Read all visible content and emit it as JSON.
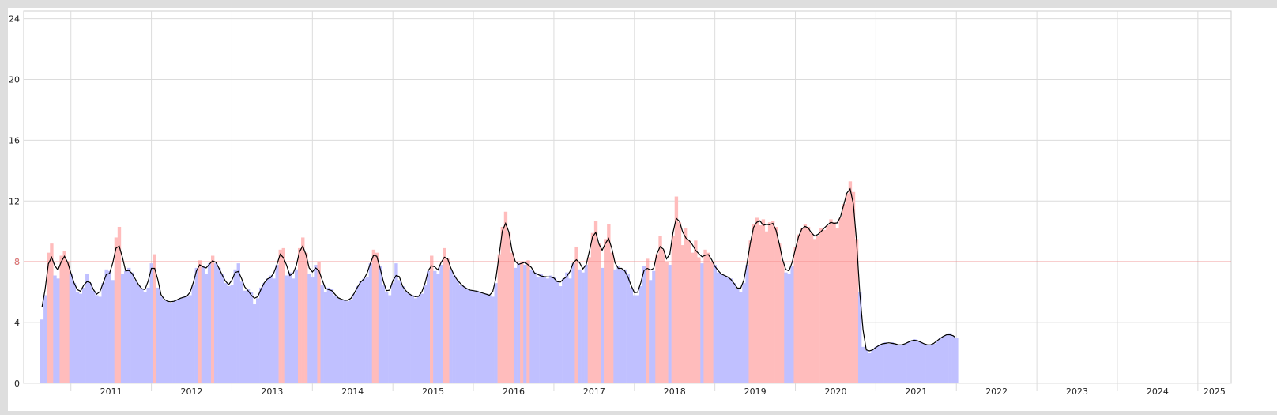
{
  "chart_data": {
    "type": "bar",
    "title": "",
    "xlabel": "",
    "ylabel": "",
    "ylim": [
      0,
      24.5
    ],
    "yticks": [
      0,
      4,
      8,
      12,
      16,
      20,
      24
    ],
    "threshold": {
      "value": 8,
      "label": "8",
      "color": "#f08080"
    },
    "xlim": [
      "2010-06-01",
      "2025-06-01"
    ],
    "year_labels": [
      "2011",
      "2012",
      "2013",
      "2014",
      "2015",
      "2016",
      "2017",
      "2018",
      "2019",
      "2020",
      "2021",
      "2022",
      "2023",
      "2024",
      "2025"
    ],
    "year_boundaries": [
      "2011-01-01",
      "2012-01-01",
      "2013-01-01",
      "2014-01-01",
      "2015-01-01",
      "2016-01-01",
      "2017-01-01",
      "2018-01-01",
      "2019-01-01",
      "2020-01-01",
      "2021-01-01",
      "2022-01-01",
      "2023-01-01",
      "2024-01-01",
      "2025-01-01"
    ],
    "colors": {
      "below": "#c0c0ff",
      "above": "#ffbcbc",
      "trend": "#000000",
      "grid": "#dcdcdc"
    },
    "series": [
      {
        "kind": "bars",
        "x_format": "year-fraction",
        "points": [
          [
            2010.62,
            4.2
          ],
          [
            2010.66,
            5.8
          ],
          [
            2010.7,
            8.6
          ],
          [
            2010.74,
            9.2
          ],
          [
            2010.78,
            7.1
          ],
          [
            2010.82,
            6.9
          ],
          [
            2010.86,
            8.4
          ],
          [
            2010.9,
            8.7
          ],
          [
            2010.94,
            8.0
          ],
          [
            2010.98,
            7.2
          ],
          [
            2011.02,
            6.6
          ],
          [
            2011.06,
            6.0
          ],
          [
            2011.1,
            5.9
          ],
          [
            2011.14,
            6.3
          ],
          [
            2011.18,
            7.2
          ],
          [
            2011.22,
            6.6
          ],
          [
            2011.26,
            6.1
          ],
          [
            2011.3,
            5.8
          ],
          [
            2011.34,
            5.7
          ],
          [
            2011.38,
            6.6
          ],
          [
            2011.42,
            7.5
          ],
          [
            2011.46,
            7.4
          ],
          [
            2011.5,
            6.8
          ],
          [
            2011.54,
            9.6
          ],
          [
            2011.58,
            10.3
          ],
          [
            2011.62,
            7.2
          ],
          [
            2011.66,
            7.4
          ],
          [
            2011.7,
            7.6
          ],
          [
            2011.74,
            7.3
          ],
          [
            2011.78,
            6.8
          ],
          [
            2011.82,
            6.5
          ],
          [
            2011.86,
            6.2
          ],
          [
            2011.9,
            6.0
          ],
          [
            2011.94,
            6.3
          ],
          [
            2011.98,
            7.9
          ],
          [
            2012.02,
            8.5
          ],
          [
            2012.06,
            6.3
          ],
          [
            2012.1,
            5.7
          ],
          [
            2012.14,
            5.5
          ],
          [
            2012.18,
            5.4
          ],
          [
            2012.22,
            5.3
          ],
          [
            2012.26,
            5.4
          ],
          [
            2012.3,
            5.5
          ],
          [
            2012.34,
            5.6
          ],
          [
            2012.38,
            5.7
          ],
          [
            2012.42,
            5.7
          ],
          [
            2012.46,
            5.8
          ],
          [
            2012.5,
            6.5
          ],
          [
            2012.54,
            7.6
          ],
          [
            2012.58,
            8.1
          ],
          [
            2012.62,
            7.7
          ],
          [
            2012.66,
            7.2
          ],
          [
            2012.7,
            7.9
          ],
          [
            2012.74,
            8.4
          ],
          [
            2012.78,
            7.9
          ],
          [
            2012.82,
            7.6
          ],
          [
            2012.86,
            7.2
          ],
          [
            2012.9,
            6.6
          ],
          [
            2012.94,
            6.4
          ],
          [
            2012.98,
            6.5
          ],
          [
            2013.02,
            7.5
          ],
          [
            2013.06,
            7.9
          ],
          [
            2013.1,
            6.7
          ],
          [
            2013.14,
            6.1
          ],
          [
            2013.18,
            6.2
          ],
          [
            2013.22,
            6.0
          ],
          [
            2013.26,
            5.2
          ],
          [
            2013.3,
            5.6
          ],
          [
            2013.34,
            6.3
          ],
          [
            2013.38,
            6.6
          ],
          [
            2013.42,
            6.9
          ],
          [
            2013.46,
            7.1
          ],
          [
            2013.5,
            6.9
          ],
          [
            2013.54,
            7.8
          ],
          [
            2013.58,
            8.8
          ],
          [
            2013.62,
            8.9
          ],
          [
            2013.66,
            7.1
          ],
          [
            2013.7,
            7.3
          ],
          [
            2013.74,
            6.9
          ],
          [
            2013.78,
            7.5
          ],
          [
            2013.82,
            8.9
          ],
          [
            2013.86,
            9.6
          ],
          [
            2013.9,
            8.6
          ],
          [
            2013.94,
            7.2
          ],
          [
            2013.98,
            7.0
          ],
          [
            2014.02,
            7.8
          ],
          [
            2014.06,
            8.0
          ],
          [
            2014.1,
            6.5
          ],
          [
            2014.14,
            6.0
          ],
          [
            2014.18,
            6.3
          ],
          [
            2014.22,
            6.2
          ],
          [
            2014.26,
            5.8
          ],
          [
            2014.3,
            5.6
          ],
          [
            2014.34,
            5.5
          ],
          [
            2014.38,
            5.5
          ],
          [
            2014.42,
            5.4
          ],
          [
            2014.46,
            5.5
          ],
          [
            2014.5,
            5.9
          ],
          [
            2014.54,
            6.4
          ],
          [
            2014.58,
            6.7
          ],
          [
            2014.62,
            6.9
          ],
          [
            2014.66,
            7.0
          ],
          [
            2014.7,
            7.9
          ],
          [
            2014.74,
            8.8
          ],
          [
            2014.78,
            8.6
          ],
          [
            2014.82,
            7.7
          ],
          [
            2014.86,
            6.5
          ],
          [
            2014.9,
            6.0
          ],
          [
            2014.94,
            5.8
          ],
          [
            2014.98,
            6.6
          ],
          [
            2015.02,
            7.9
          ],
          [
            2015.06,
            6.8
          ],
          [
            2015.1,
            6.4
          ],
          [
            2015.14,
            6.0
          ],
          [
            2015.18,
            5.9
          ],
          [
            2015.22,
            5.8
          ],
          [
            2015.26,
            5.6
          ],
          [
            2015.3,
            5.7
          ],
          [
            2015.34,
            5.9
          ],
          [
            2015.38,
            6.5
          ],
          [
            2015.42,
            7.4
          ],
          [
            2015.46,
            8.4
          ],
          [
            2015.5,
            7.4
          ],
          [
            2015.54,
            7.2
          ],
          [
            2015.58,
            7.8
          ],
          [
            2015.62,
            8.9
          ],
          [
            2015.66,
            8.2
          ],
          [
            2015.7,
            7.5
          ],
          [
            2015.74,
            7.1
          ],
          [
            2015.78,
            6.8
          ],
          [
            2015.82,
            6.5
          ],
          [
            2015.86,
            6.4
          ],
          [
            2015.9,
            6.2
          ],
          [
            2015.94,
            6.1
          ],
          [
            2015.98,
            6.1
          ],
          [
            2016.02,
            6.1
          ],
          [
            2016.06,
            6.0
          ],
          [
            2016.1,
            5.9
          ],
          [
            2016.14,
            5.9
          ],
          [
            2016.18,
            5.8
          ],
          [
            2016.22,
            5.7
          ],
          [
            2016.26,
            6.6
          ],
          [
            2016.3,
            8.5
          ],
          [
            2016.34,
            10.3
          ],
          [
            2016.38,
            11.3
          ],
          [
            2016.42,
            10.0
          ],
          [
            2016.46,
            8.6
          ],
          [
            2016.5,
            7.6
          ],
          [
            2016.54,
            7.9
          ],
          [
            2016.58,
            8.0
          ],
          [
            2016.62,
            7.8
          ],
          [
            2016.66,
            8.1
          ],
          [
            2016.7,
            7.5
          ],
          [
            2016.74,
            7.3
          ],
          [
            2016.78,
            7.0
          ],
          [
            2016.82,
            7.2
          ],
          [
            2016.86,
            7.0
          ],
          [
            2016.9,
            6.9
          ],
          [
            2016.94,
            7.1
          ],
          [
            2016.98,
            7.0
          ],
          [
            2017.02,
            6.7
          ],
          [
            2017.06,
            6.4
          ],
          [
            2017.1,
            6.9
          ],
          [
            2017.14,
            7.3
          ],
          [
            2017.18,
            6.9
          ],
          [
            2017.22,
            7.9
          ],
          [
            2017.26,
            9.0
          ],
          [
            2017.3,
            7.5
          ],
          [
            2017.34,
            7.3
          ],
          [
            2017.38,
            7.8
          ],
          [
            2017.42,
            8.3
          ],
          [
            2017.46,
            9.9
          ],
          [
            2017.5,
            10.7
          ],
          [
            2017.54,
            9.2
          ],
          [
            2017.58,
            7.6
          ],
          [
            2017.62,
            9.5
          ],
          [
            2017.66,
            10.5
          ],
          [
            2017.7,
            8.6
          ],
          [
            2017.74,
            7.5
          ],
          [
            2017.78,
            7.7
          ],
          [
            2017.82,
            7.5
          ],
          [
            2017.86,
            7.5
          ],
          [
            2017.9,
            7.2
          ],
          [
            2017.94,
            6.3
          ],
          [
            2017.98,
            5.8
          ],
          [
            2018.02,
            5.8
          ],
          [
            2018.06,
            6.4
          ],
          [
            2018.1,
            7.7
          ],
          [
            2018.14,
            8.2
          ],
          [
            2018.18,
            6.8
          ],
          [
            2018.22,
            7.4
          ],
          [
            2018.26,
            8.5
          ],
          [
            2018.3,
            9.7
          ],
          [
            2018.34,
            8.8
          ],
          [
            2018.38,
            8.0
          ],
          [
            2018.42,
            7.8
          ],
          [
            2018.46,
            9.7
          ],
          [
            2018.5,
            12.3
          ],
          [
            2018.54,
            10.6
          ],
          [
            2018.58,
            9.1
          ],
          [
            2018.62,
            10.2
          ],
          [
            2018.66,
            9.4
          ],
          [
            2018.7,
            8.6
          ],
          [
            2018.74,
            9.4
          ],
          [
            2018.78,
            8.3
          ],
          [
            2018.82,
            7.9
          ],
          [
            2018.86,
            8.8
          ],
          [
            2018.9,
            8.6
          ],
          [
            2018.94,
            8.0
          ],
          [
            2018.98,
            7.8
          ],
          [
            2019.02,
            7.3
          ],
          [
            2019.06,
            7.2
          ],
          [
            2019.1,
            7.1
          ],
          [
            2019.14,
            7.0
          ],
          [
            2019.18,
            6.9
          ],
          [
            2019.22,
            6.6
          ],
          [
            2019.26,
            6.2
          ],
          [
            2019.3,
            6.0
          ],
          [
            2019.34,
            6.6
          ],
          [
            2019.38,
            7.8
          ],
          [
            2019.42,
            9.4
          ],
          [
            2019.46,
            10.5
          ],
          [
            2019.5,
            10.9
          ],
          [
            2019.54,
            10.4
          ],
          [
            2019.58,
            10.8
          ],
          [
            2019.62,
            10.0
          ],
          [
            2019.66,
            10.6
          ],
          [
            2019.7,
            10.7
          ],
          [
            2019.74,
            10.3
          ],
          [
            2019.78,
            9.2
          ],
          [
            2019.82,
            8.0
          ],
          [
            2019.86,
            7.3
          ],
          [
            2019.9,
            7.2
          ],
          [
            2019.94,
            7.7
          ],
          [
            2019.98,
            9.0
          ],
          [
            2020.02,
            9.8
          ],
          [
            2020.06,
            10.2
          ],
          [
            2020.1,
            10.5
          ],
          [
            2020.14,
            10.3
          ],
          [
            2020.18,
            9.9
          ],
          [
            2020.22,
            9.5
          ],
          [
            2020.26,
            9.7
          ],
          [
            2020.3,
            10.2
          ],
          [
            2020.34,
            10.1
          ],
          [
            2020.38,
            10.4
          ],
          [
            2020.42,
            10.8
          ],
          [
            2020.46,
            10.6
          ],
          [
            2020.5,
            10.2
          ],
          [
            2020.54,
            10.9
          ],
          [
            2020.58,
            11.8
          ],
          [
            2020.62,
            12.5
          ],
          [
            2020.66,
            13.3
          ],
          [
            2020.7,
            12.6
          ],
          [
            2020.74,
            9.5
          ],
          [
            2020.78,
            6.0
          ],
          [
            2020.82,
            2.4
          ],
          [
            2020.86,
            2.2
          ],
          [
            2020.9,
            2.0
          ],
          [
            2020.94,
            2.2
          ],
          [
            2020.98,
            2.4
          ],
          [
            2021.02,
            2.5
          ],
          [
            2021.06,
            2.6
          ],
          [
            2021.1,
            2.7
          ],
          [
            2021.14,
            2.6
          ],
          [
            2021.18,
            2.7
          ],
          [
            2021.22,
            2.6
          ],
          [
            2021.26,
            2.5
          ],
          [
            2021.3,
            2.5
          ],
          [
            2021.34,
            2.6
          ],
          [
            2021.38,
            2.7
          ],
          [
            2021.42,
            2.8
          ],
          [
            2021.46,
            2.9
          ],
          [
            2021.5,
            2.8
          ],
          [
            2021.54,
            2.7
          ],
          [
            2021.58,
            2.6
          ],
          [
            2021.62,
            2.5
          ],
          [
            2021.66,
            2.5
          ],
          [
            2021.7,
            2.6
          ],
          [
            2021.74,
            2.8
          ],
          [
            2021.78,
            3.0
          ],
          [
            2021.82,
            3.1
          ],
          [
            2021.86,
            3.2
          ],
          [
            2021.9,
            3.3
          ],
          [
            2021.94,
            3.1
          ],
          [
            2021.98,
            3.0
          ]
        ]
      }
    ]
  }
}
